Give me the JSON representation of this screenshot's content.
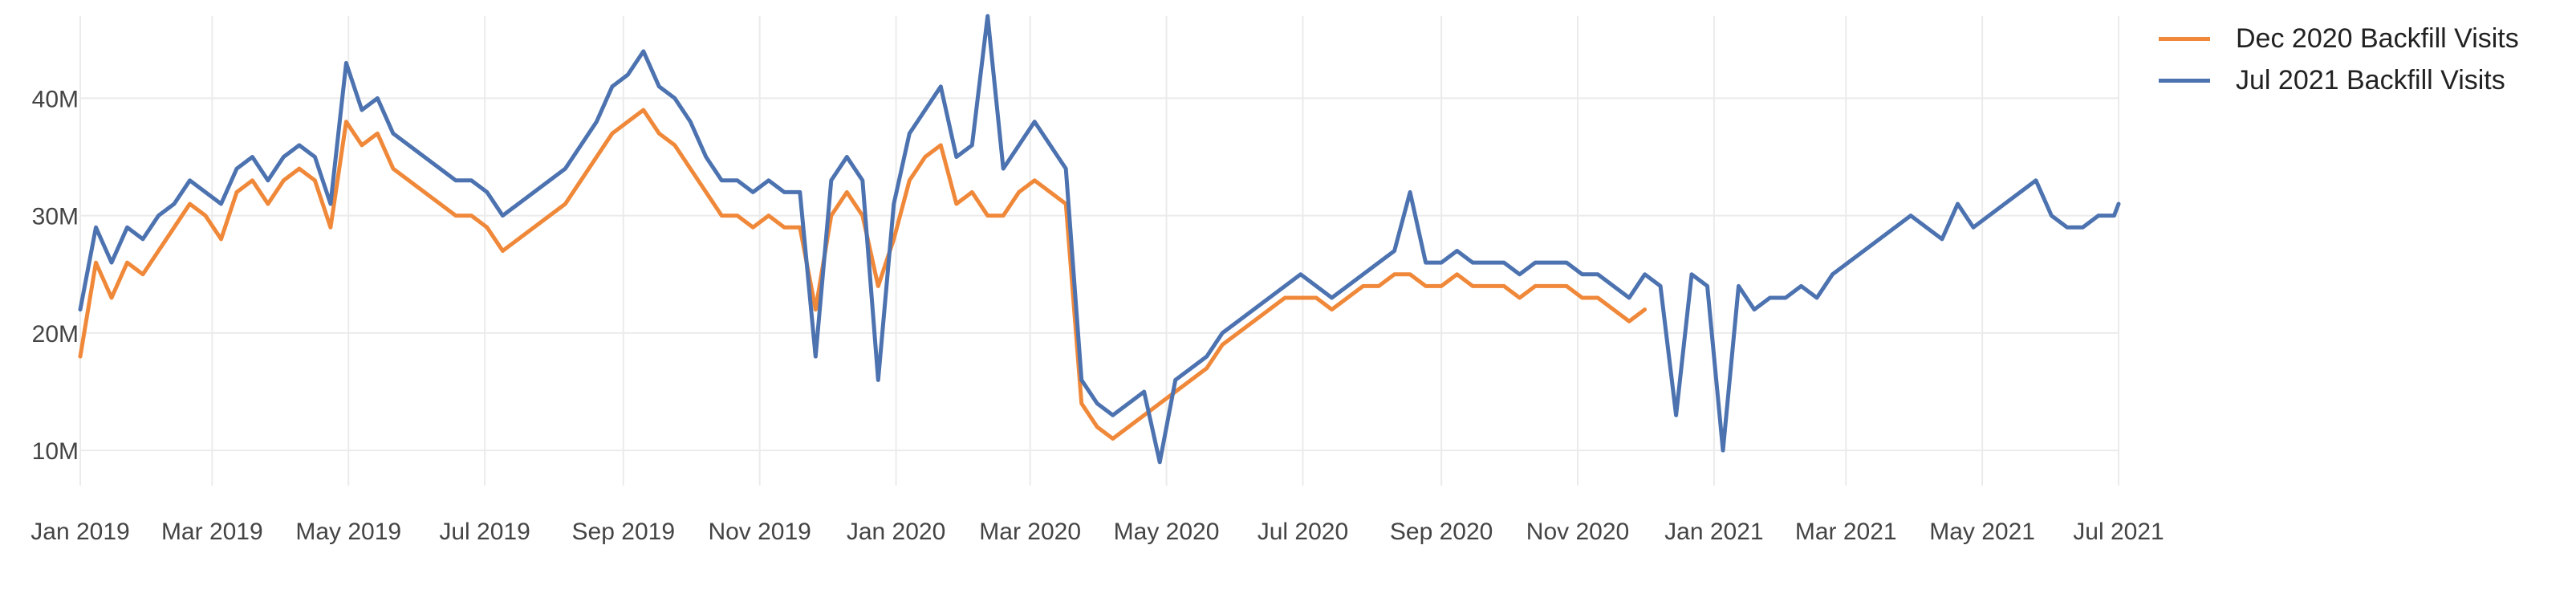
{
  "chart_data": {
    "type": "line",
    "title": "",
    "xlabel": "",
    "ylabel": "",
    "grid": true,
    "legend_position": "top-right",
    "x_range": [
      "2019-01-01",
      "2021-07-01"
    ],
    "ylim": [
      7000000,
      47000000
    ],
    "x_ticks": [
      {
        "date": "2019-01-01",
        "label": "Jan 2019"
      },
      {
        "date": "2019-03-01",
        "label": "Mar 2019"
      },
      {
        "date": "2019-05-01",
        "label": "May 2019"
      },
      {
        "date": "2019-07-01",
        "label": "Jul 2019"
      },
      {
        "date": "2019-09-01",
        "label": "Sep 2019"
      },
      {
        "date": "2019-11-01",
        "label": "Nov 2019"
      },
      {
        "date": "2020-01-01",
        "label": "Jan 2020"
      },
      {
        "date": "2020-03-01",
        "label": "Mar 2020"
      },
      {
        "date": "2020-05-01",
        "label": "May 2020"
      },
      {
        "date": "2020-07-01",
        "label": "Jul 2020"
      },
      {
        "date": "2020-09-01",
        "label": "Sep 2020"
      },
      {
        "date": "2020-11-01",
        "label": "Nov 2020"
      },
      {
        "date": "2021-01-01",
        "label": "Jan 2021"
      },
      {
        "date": "2021-03-01",
        "label": "Mar 2021"
      },
      {
        "date": "2021-05-01",
        "label": "May 2021"
      },
      {
        "date": "2021-07-01",
        "label": "Jul 2021"
      }
    ],
    "y_ticks": [
      {
        "value": 10000000,
        "label": "10M"
      },
      {
        "value": 20000000,
        "label": "20M"
      },
      {
        "value": 30000000,
        "label": "30M"
      },
      {
        "value": 40000000,
        "label": "40M"
      }
    ],
    "series": [
      {
        "name": "Dec 2020 Backfill Visits",
        "color": "#f0883a",
        "x": [
          "2019-01-01",
          "2019-01-08",
          "2019-01-15",
          "2019-01-22",
          "2019-01-29",
          "2019-02-05",
          "2019-02-12",
          "2019-02-19",
          "2019-02-26",
          "2019-03-05",
          "2019-03-12",
          "2019-03-19",
          "2019-03-26",
          "2019-04-02",
          "2019-04-09",
          "2019-04-16",
          "2019-04-23",
          "2019-04-30",
          "2019-05-07",
          "2019-05-14",
          "2019-05-21",
          "2019-05-28",
          "2019-06-04",
          "2019-06-11",
          "2019-06-18",
          "2019-06-25",
          "2019-07-02",
          "2019-07-09",
          "2019-07-16",
          "2019-07-23",
          "2019-07-30",
          "2019-08-06",
          "2019-08-13",
          "2019-08-20",
          "2019-08-27",
          "2019-09-03",
          "2019-09-10",
          "2019-09-17",
          "2019-09-24",
          "2019-10-01",
          "2019-10-08",
          "2019-10-15",
          "2019-10-22",
          "2019-10-29",
          "2019-11-05",
          "2019-11-12",
          "2019-11-19",
          "2019-11-26",
          "2019-12-03",
          "2019-12-10",
          "2019-12-17",
          "2019-12-24",
          "2019-12-31",
          "2020-01-07",
          "2020-01-14",
          "2020-01-21",
          "2020-01-28",
          "2020-02-04",
          "2020-02-11",
          "2020-02-18",
          "2020-02-25",
          "2020-03-03",
          "2020-03-10",
          "2020-03-17",
          "2020-03-24",
          "2020-03-31",
          "2020-04-07",
          "2020-04-14",
          "2020-04-21",
          "2020-04-28",
          "2020-05-05",
          "2020-05-12",
          "2020-05-19",
          "2020-05-26",
          "2020-06-02",
          "2020-06-09",
          "2020-06-16",
          "2020-06-23",
          "2020-06-30",
          "2020-07-07",
          "2020-07-14",
          "2020-07-21",
          "2020-07-28",
          "2020-08-04",
          "2020-08-11",
          "2020-08-18",
          "2020-08-25",
          "2020-09-01",
          "2020-09-08",
          "2020-09-15",
          "2020-09-22",
          "2020-09-29",
          "2020-10-06",
          "2020-10-13",
          "2020-10-20",
          "2020-10-27",
          "2020-11-03",
          "2020-11-10",
          "2020-11-17",
          "2020-11-24",
          "2020-12-01"
        ],
        "values": [
          18000000,
          26000000,
          23000000,
          26000000,
          25000000,
          27000000,
          29000000,
          31000000,
          30000000,
          28000000,
          32000000,
          33000000,
          31000000,
          33000000,
          34000000,
          33000000,
          29000000,
          38000000,
          36000000,
          37000000,
          34000000,
          33000000,
          32000000,
          31000000,
          30000000,
          30000000,
          29000000,
          27000000,
          28000000,
          29000000,
          30000000,
          31000000,
          33000000,
          35000000,
          37000000,
          38000000,
          39000000,
          37000000,
          36000000,
          34000000,
          32000000,
          30000000,
          30000000,
          29000000,
          30000000,
          29000000,
          29000000,
          22000000,
          30000000,
          32000000,
          30000000,
          24000000,
          28000000,
          33000000,
          35000000,
          36000000,
          31000000,
          32000000,
          30000000,
          30000000,
          32000000,
          33000000,
          32000000,
          31000000,
          14000000,
          12000000,
          11000000,
          12000000,
          13000000,
          14000000,
          15000000,
          16000000,
          17000000,
          19000000,
          20000000,
          21000000,
          22000000,
          23000000,
          23000000,
          23000000,
          22000000,
          23000000,
          24000000,
          24000000,
          25000000,
          25000000,
          24000000,
          24000000,
          25000000,
          24000000,
          24000000,
          24000000,
          23000000,
          24000000,
          24000000,
          24000000,
          23000000,
          23000000,
          22000000,
          21000000,
          22000000
        ]
      },
      {
        "name": "Jul 2021 Backfill Visits",
        "color": "#4c72b0",
        "x": [
          "2019-01-01",
          "2019-01-08",
          "2019-01-15",
          "2019-01-22",
          "2019-01-29",
          "2019-02-05",
          "2019-02-12",
          "2019-02-19",
          "2019-02-26",
          "2019-03-05",
          "2019-03-12",
          "2019-03-19",
          "2019-03-26",
          "2019-04-02",
          "2019-04-09",
          "2019-04-16",
          "2019-04-23",
          "2019-04-30",
          "2019-05-07",
          "2019-05-14",
          "2019-05-21",
          "2019-05-28",
          "2019-06-04",
          "2019-06-11",
          "2019-06-18",
          "2019-06-25",
          "2019-07-02",
          "2019-07-09",
          "2019-07-16",
          "2019-07-23",
          "2019-07-30",
          "2019-08-06",
          "2019-08-13",
          "2019-08-20",
          "2019-08-27",
          "2019-09-03",
          "2019-09-10",
          "2019-09-17",
          "2019-09-24",
          "2019-10-01",
          "2019-10-08",
          "2019-10-15",
          "2019-10-22",
          "2019-10-29",
          "2019-11-05",
          "2019-11-12",
          "2019-11-19",
          "2019-11-26",
          "2019-12-03",
          "2019-12-10",
          "2019-12-17",
          "2019-12-24",
          "2019-12-31",
          "2020-01-07",
          "2020-01-14",
          "2020-01-21",
          "2020-01-28",
          "2020-02-04",
          "2020-02-11",
          "2020-02-18",
          "2020-02-25",
          "2020-03-03",
          "2020-03-10",
          "2020-03-17",
          "2020-03-24",
          "2020-03-31",
          "2020-04-07",
          "2020-04-14",
          "2020-04-21",
          "2020-04-28",
          "2020-05-05",
          "2020-05-12",
          "2020-05-19",
          "2020-05-26",
          "2020-06-02",
          "2020-06-09",
          "2020-06-16",
          "2020-06-23",
          "2020-06-30",
          "2020-07-07",
          "2020-07-14",
          "2020-07-21",
          "2020-07-28",
          "2020-08-04",
          "2020-08-11",
          "2020-08-18",
          "2020-08-25",
          "2020-09-01",
          "2020-09-08",
          "2020-09-15",
          "2020-09-22",
          "2020-09-29",
          "2020-10-06",
          "2020-10-13",
          "2020-10-20",
          "2020-10-27",
          "2020-11-03",
          "2020-11-10",
          "2020-11-17",
          "2020-11-24",
          "2020-12-01",
          "2020-12-08",
          "2020-12-15",
          "2020-12-22",
          "2020-12-29",
          "2021-01-05",
          "2021-01-12",
          "2021-01-19",
          "2021-01-26",
          "2021-02-02",
          "2021-02-09",
          "2021-02-16",
          "2021-02-23",
          "2021-03-02",
          "2021-03-09",
          "2021-03-16",
          "2021-03-23",
          "2021-03-30",
          "2021-04-06",
          "2021-04-13",
          "2021-04-20",
          "2021-04-27",
          "2021-05-04",
          "2021-05-11",
          "2021-05-18",
          "2021-05-25",
          "2021-06-01",
          "2021-06-08",
          "2021-06-15",
          "2021-06-22",
          "2021-06-29",
          "2021-07-01"
        ],
        "values": [
          22000000,
          29000000,
          26000000,
          29000000,
          28000000,
          30000000,
          31000000,
          33000000,
          32000000,
          31000000,
          34000000,
          35000000,
          33000000,
          35000000,
          36000000,
          35000000,
          31000000,
          43000000,
          39000000,
          40000000,
          37000000,
          36000000,
          35000000,
          34000000,
          33000000,
          33000000,
          32000000,
          30000000,
          31000000,
          32000000,
          33000000,
          34000000,
          36000000,
          38000000,
          41000000,
          42000000,
          44000000,
          41000000,
          40000000,
          38000000,
          35000000,
          33000000,
          33000000,
          32000000,
          33000000,
          32000000,
          32000000,
          18000000,
          33000000,
          35000000,
          33000000,
          16000000,
          31000000,
          37000000,
          39000000,
          41000000,
          35000000,
          36000000,
          47000000,
          34000000,
          36000000,
          38000000,
          36000000,
          34000000,
          16000000,
          14000000,
          13000000,
          14000000,
          15000000,
          9000000,
          16000000,
          17000000,
          18000000,
          20000000,
          21000000,
          22000000,
          23000000,
          24000000,
          25000000,
          24000000,
          23000000,
          24000000,
          25000000,
          26000000,
          27000000,
          32000000,
          26000000,
          26000000,
          27000000,
          26000000,
          26000000,
          26000000,
          25000000,
          26000000,
          26000000,
          26000000,
          25000000,
          25000000,
          24000000,
          23000000,
          25000000,
          24000000,
          13000000,
          25000000,
          24000000,
          10000000,
          24000000,
          22000000,
          23000000,
          23000000,
          24000000,
          23000000,
          25000000,
          26000000,
          27000000,
          28000000,
          29000000,
          30000000,
          29000000,
          28000000,
          31000000,
          29000000,
          30000000,
          31000000,
          32000000,
          33000000,
          30000000,
          29000000,
          29000000,
          30000000,
          30000000,
          31000000
        ]
      }
    ]
  }
}
